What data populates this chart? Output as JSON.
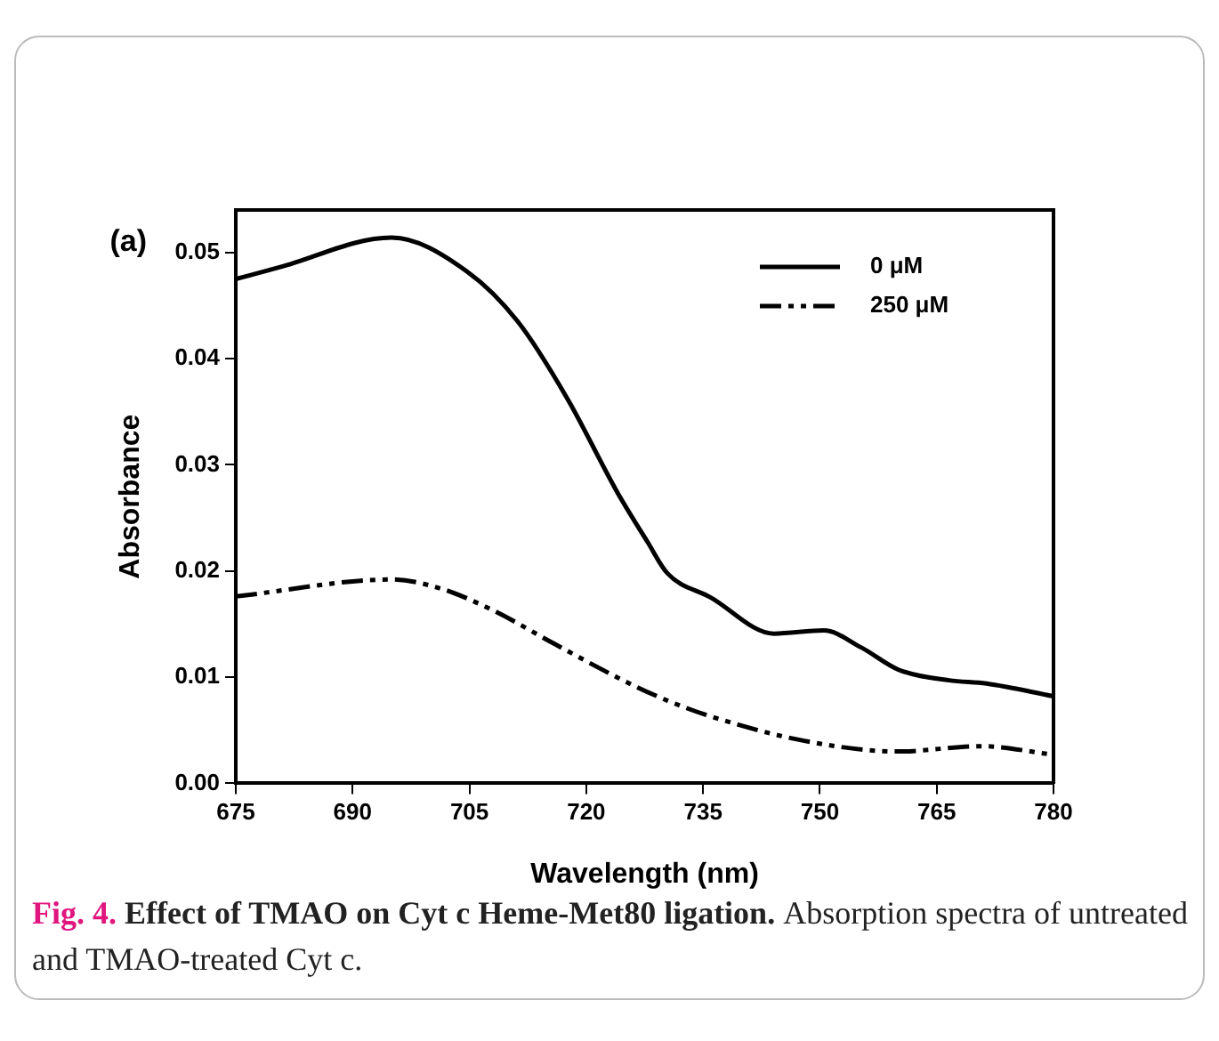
{
  "chart_data": {
    "type": "line",
    "xlabel": "Wavelength (nm)",
    "ylabel": "Absorbance",
    "xlim": [
      675,
      780
    ],
    "xticks": [
      675,
      690,
      705,
      720,
      735,
      750,
      765,
      780
    ],
    "ylim": [
      0,
      0.054
    ],
    "yticks": [
      {
        "value": 0,
        "label": "0.00"
      },
      {
        "value": 0.01,
        "label": "0.01"
      },
      {
        "value": 0.02,
        "label": "0.02"
      },
      {
        "value": 0.03,
        "label": "0.03"
      },
      {
        "value": 0.04,
        "label": "0.04"
      },
      {
        "value": 0.05,
        "label": "0.05"
      }
    ],
    "legend": "top right",
    "grid": false,
    "marker": "none",
    "annotations": [
      "(a)",
      "Fig. 4.",
      "Effect of TMAO on Cyt c Heme-Met80 ligation.",
      "Absorption spectra of untreated and TMAO-treated Cyt c."
    ],
    "series": [
      {
        "name": "0 μM",
        "color": "#000000",
        "line_style": "solid",
        "x": [
          675,
          680.6,
          695,
          704.7,
          711.2,
          717.6,
          724,
          727.9,
          730.4,
          736,
          744.1,
          750.5,
          755.3,
          760.1,
          766.6,
          771.4,
          780
        ],
        "values": [
          0.0475,
          0.0486,
          0.0514,
          0.0482,
          0.0435,
          0.0362,
          0.0274,
          0.0227,
          0.0198,
          0.0175,
          0.0141,
          0.0144,
          0.0128,
          0.0107,
          0.0097,
          0.0094,
          0.0082
        ]
      },
      {
        "name": "250 μM",
        "color": "#000000",
        "line_style": "dashed",
        "x": [
          675,
          695,
          701.5,
          708,
          716,
          725,
          730.4,
          736,
          748,
          760.1,
          770.6,
          780
        ],
        "values": [
          0.0176,
          0.0192,
          0.0183,
          0.0163,
          0.0131,
          0.0096,
          0.0078,
          0.0063,
          0.004,
          0.003,
          0.0035,
          0.0027
        ]
      }
    ]
  }
}
